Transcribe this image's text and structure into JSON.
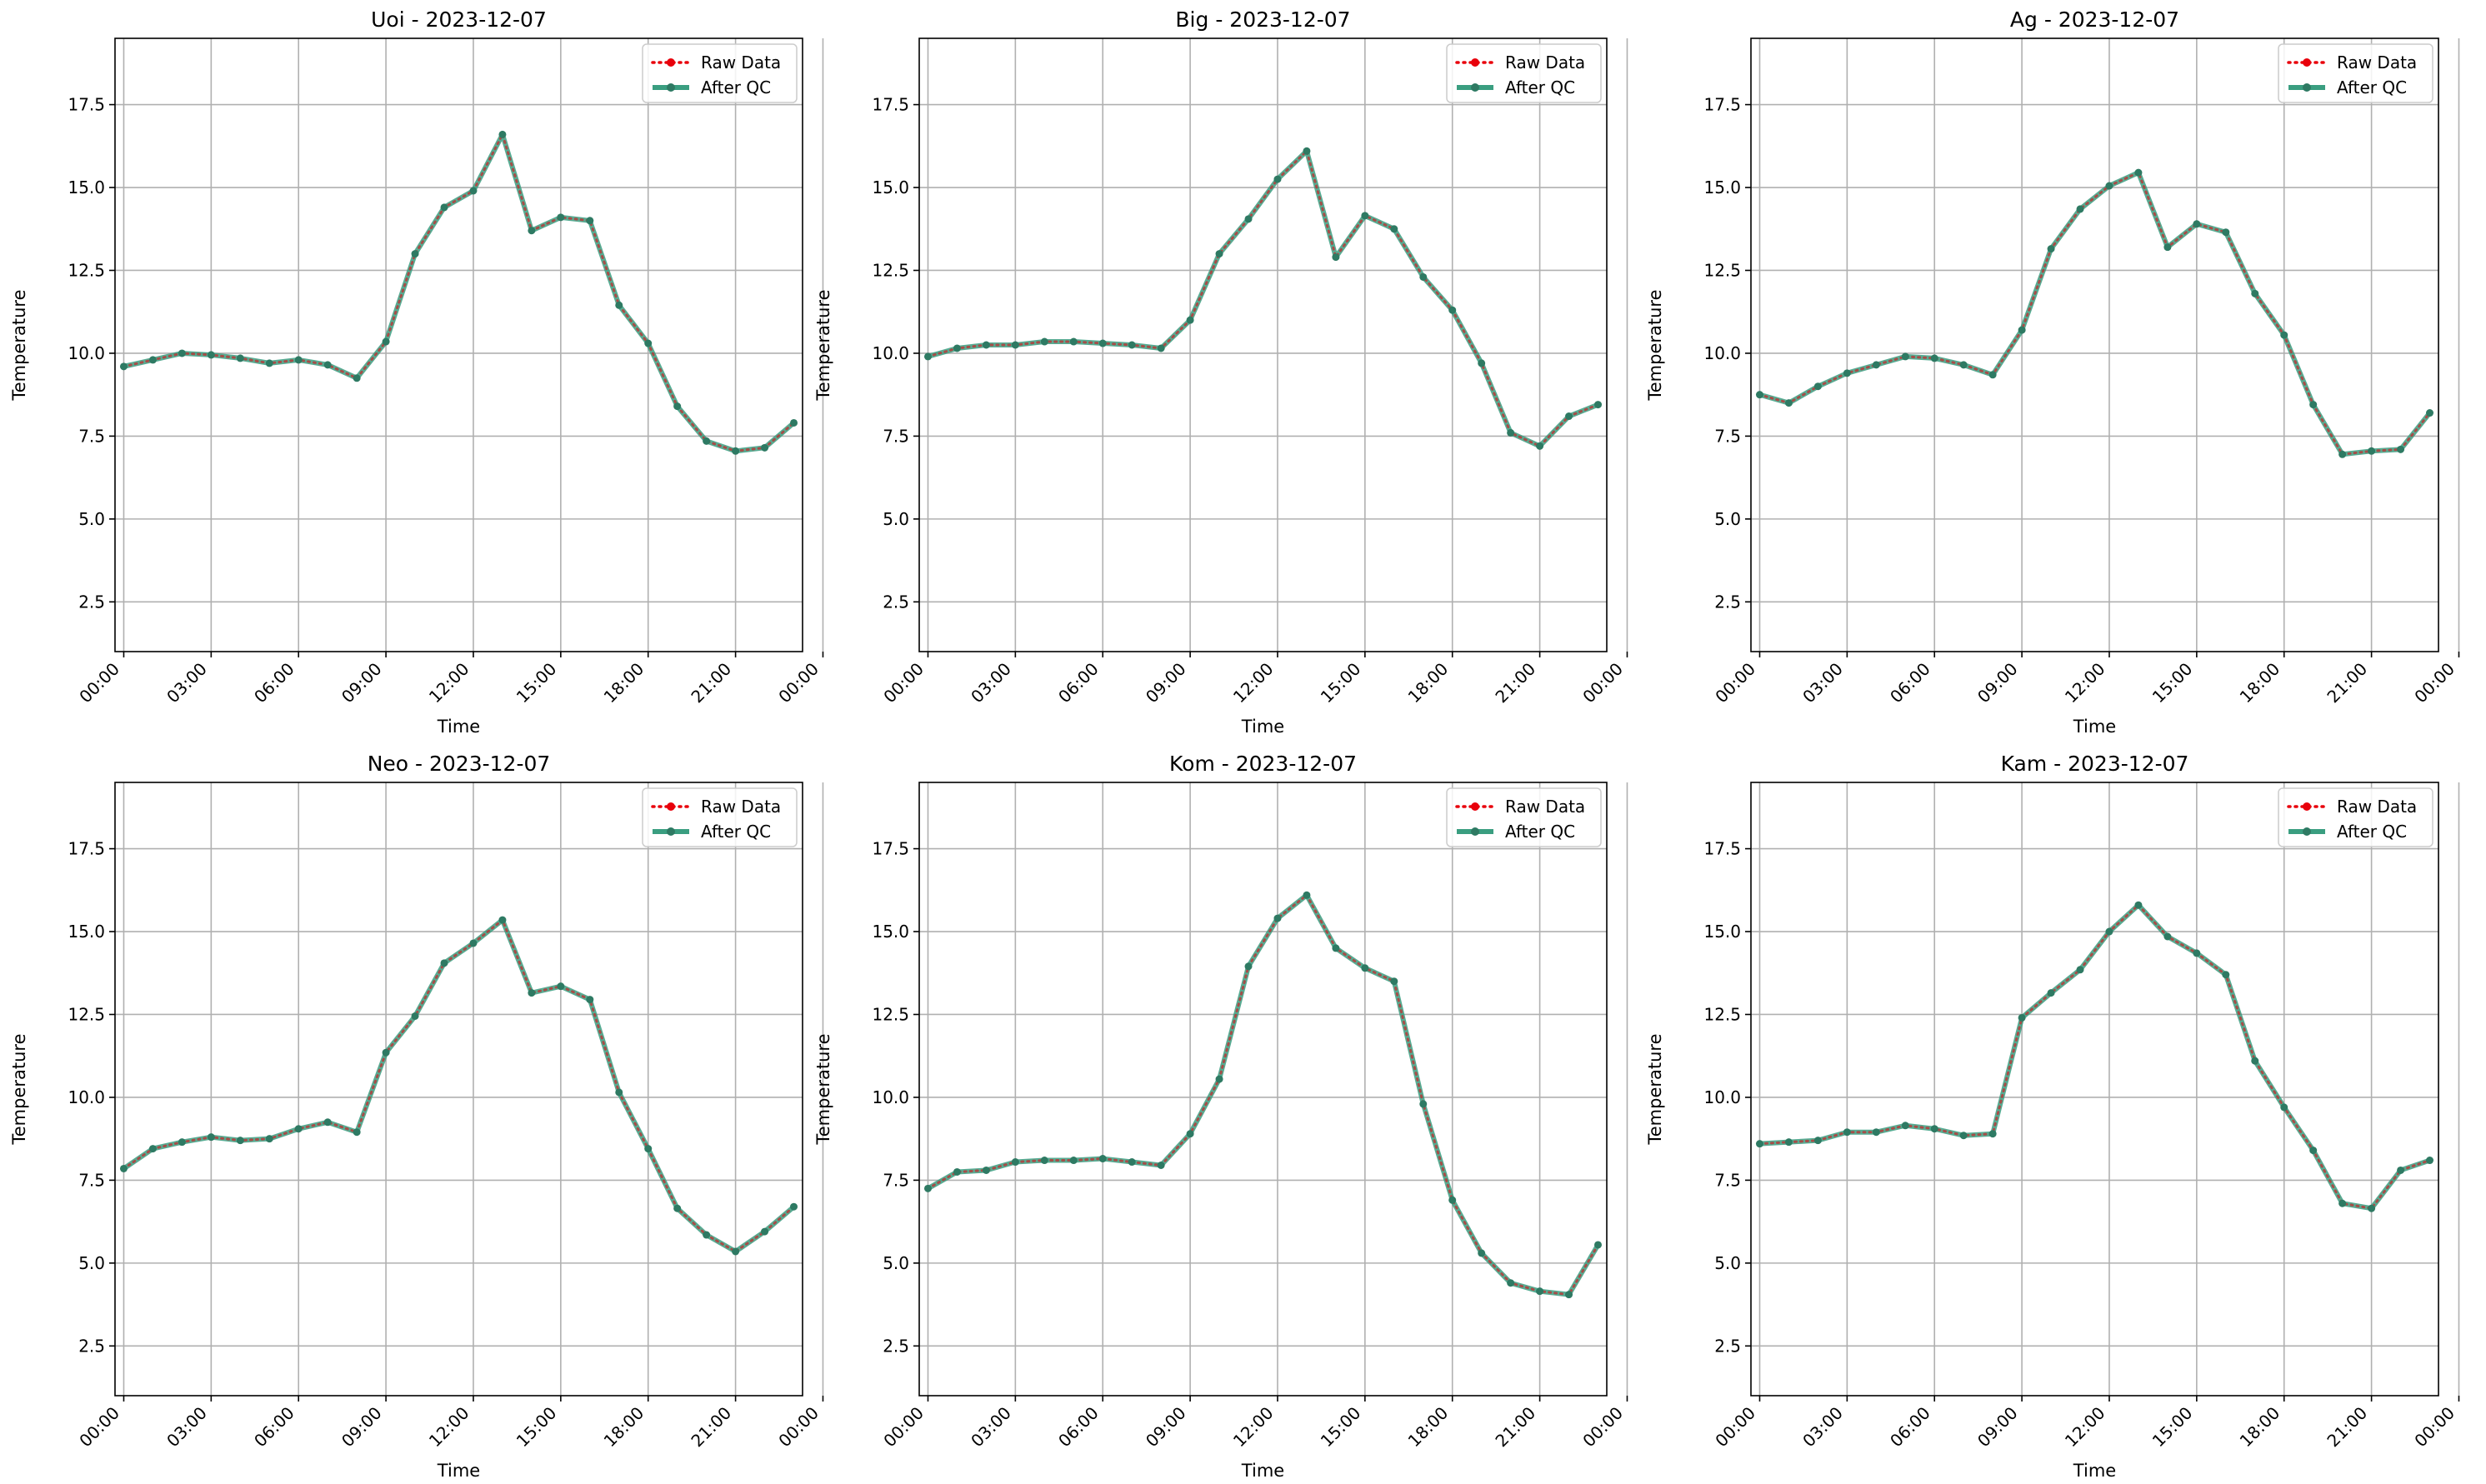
{
  "colors": {
    "raw": "#e8000b",
    "qc": "#3a9e80",
    "marker": "#2e7a63",
    "grid": "#b0b0b0",
    "axis": "#000000",
    "legend_border": "#cccccc"
  },
  "chart_data": [
    {
      "type": "line",
      "title": "Uoi - 2023-12-07",
      "xlabel": "Time",
      "ylabel": "Temperature",
      "ylim": [
        1.0,
        19.5
      ],
      "xlim": [
        -0.3,
        23.3
      ],
      "x_ticks": [
        "00:00",
        "03:00",
        "06:00",
        "09:00",
        "12:00",
        "15:00",
        "18:00",
        "21:00",
        "00:00"
      ],
      "y_ticks": [
        "2.5",
        "5.0",
        "7.5",
        "10.0",
        "12.5",
        "15.0",
        "17.5"
      ],
      "grid": true,
      "legend_position": "top-right",
      "x": [
        0,
        1,
        2,
        3,
        4,
        5,
        6,
        7,
        8,
        9,
        10,
        11,
        12,
        13,
        14,
        15,
        16,
        17,
        18,
        19,
        20,
        21,
        22,
        23
      ],
      "series": [
        {
          "name": "Raw Data",
          "style": "dotted",
          "values": [
            9.6,
            9.8,
            10.0,
            9.95,
            9.85,
            9.7,
            9.8,
            9.65,
            9.25,
            10.35,
            13.0,
            14.4,
            14.9,
            16.6,
            13.7,
            14.1,
            14.0,
            11.45,
            10.3,
            8.4,
            7.35,
            7.05,
            7.15,
            7.9
          ]
        },
        {
          "name": "After QC",
          "style": "solid",
          "values": [
            9.6,
            9.8,
            10.0,
            9.95,
            9.85,
            9.7,
            9.8,
            9.65,
            9.25,
            10.35,
            13.0,
            14.4,
            14.9,
            16.6,
            13.7,
            14.1,
            14.0,
            11.45,
            10.3,
            8.4,
            7.35,
            7.05,
            7.15,
            7.9
          ]
        }
      ]
    },
    {
      "type": "line",
      "title": "Big - 2023-12-07",
      "xlabel": "Time",
      "ylabel": "Temperature",
      "ylim": [
        1.0,
        19.5
      ],
      "xlim": [
        -0.3,
        23.3
      ],
      "x_ticks": [
        "00:00",
        "03:00",
        "06:00",
        "09:00",
        "12:00",
        "15:00",
        "18:00",
        "21:00",
        "00:00"
      ],
      "y_ticks": [
        "2.5",
        "5.0",
        "7.5",
        "10.0",
        "12.5",
        "15.0",
        "17.5"
      ],
      "grid": true,
      "legend_position": "top-right",
      "x": [
        0,
        1,
        2,
        3,
        4,
        5,
        6,
        7,
        8,
        9,
        10,
        11,
        12,
        13,
        14,
        15,
        16,
        17,
        18,
        19,
        20,
        21,
        22,
        23
      ],
      "series": [
        {
          "name": "Raw Data",
          "style": "dotted",
          "values": [
            9.9,
            10.15,
            10.25,
            10.25,
            10.35,
            10.35,
            10.3,
            10.25,
            10.15,
            11.0,
            13.0,
            14.05,
            15.25,
            16.1,
            12.9,
            14.15,
            13.75,
            12.3,
            11.3,
            9.7,
            7.6,
            7.2,
            8.1,
            8.45
          ]
        },
        {
          "name": "After QC",
          "style": "solid",
          "values": [
            9.9,
            10.15,
            10.25,
            10.25,
            10.35,
            10.35,
            10.3,
            10.25,
            10.15,
            11.0,
            13.0,
            14.05,
            15.25,
            16.1,
            12.9,
            14.15,
            13.75,
            12.3,
            11.3,
            9.7,
            7.6,
            7.2,
            8.1,
            8.45
          ]
        }
      ]
    },
    {
      "type": "line",
      "title": "Ag - 2023-12-07",
      "xlabel": "Time",
      "ylabel": "Temperature",
      "ylim": [
        1.0,
        19.5
      ],
      "xlim": [
        -0.3,
        23.3
      ],
      "x_ticks": [
        "00:00",
        "03:00",
        "06:00",
        "09:00",
        "12:00",
        "15:00",
        "18:00",
        "21:00",
        "00:00"
      ],
      "y_ticks": [
        "2.5",
        "5.0",
        "7.5",
        "10.0",
        "12.5",
        "15.0",
        "17.5"
      ],
      "grid": true,
      "legend_position": "top-right",
      "x": [
        0,
        1,
        2,
        3,
        4,
        5,
        6,
        7,
        8,
        9,
        10,
        11,
        12,
        13,
        14,
        15,
        16,
        17,
        18,
        19,
        20,
        21,
        22,
        23
      ],
      "series": [
        {
          "name": "Raw Data",
          "style": "dotted",
          "values": [
            8.75,
            8.5,
            9.0,
            9.4,
            9.65,
            9.9,
            9.85,
            9.65,
            9.35,
            10.7,
            13.15,
            14.35,
            15.05,
            15.45,
            13.2,
            13.9,
            13.65,
            11.8,
            10.55,
            8.45,
            6.95,
            7.05,
            7.1,
            8.2
          ]
        },
        {
          "name": "After QC",
          "style": "solid",
          "values": [
            8.75,
            8.5,
            9.0,
            9.4,
            9.65,
            9.9,
            9.85,
            9.65,
            9.35,
            10.7,
            13.15,
            14.35,
            15.05,
            15.45,
            13.2,
            13.9,
            13.65,
            11.8,
            10.55,
            8.45,
            6.95,
            7.05,
            7.1,
            8.2
          ]
        }
      ]
    },
    {
      "type": "line",
      "title": "Neo - 2023-12-07",
      "xlabel": "Time",
      "ylabel": "Temperature",
      "ylim": [
        1.0,
        19.5
      ],
      "xlim": [
        -0.3,
        23.3
      ],
      "x_ticks": [
        "00:00",
        "03:00",
        "06:00",
        "09:00",
        "12:00",
        "15:00",
        "18:00",
        "21:00",
        "00:00"
      ],
      "y_ticks": [
        "2.5",
        "5.0",
        "7.5",
        "10.0",
        "12.5",
        "15.0",
        "17.5"
      ],
      "grid": true,
      "legend_position": "top-right",
      "x": [
        0,
        1,
        2,
        3,
        4,
        5,
        6,
        7,
        8,
        9,
        10,
        11,
        12,
        13,
        14,
        15,
        16,
        17,
        18,
        19,
        20,
        21,
        22,
        23
      ],
      "series": [
        {
          "name": "Raw Data",
          "style": "dotted",
          "values": [
            7.85,
            8.45,
            8.65,
            8.8,
            8.7,
            8.75,
            9.05,
            9.25,
            8.95,
            11.35,
            12.45,
            14.05,
            14.65,
            15.35,
            13.15,
            13.35,
            12.95,
            10.15,
            8.45,
            6.65,
            5.85,
            5.35,
            5.95,
            6.7
          ]
        },
        {
          "name": "After QC",
          "style": "solid",
          "values": [
            7.85,
            8.45,
            8.65,
            8.8,
            8.7,
            8.75,
            9.05,
            9.25,
            8.95,
            11.35,
            12.45,
            14.05,
            14.65,
            15.35,
            13.15,
            13.35,
            12.95,
            10.15,
            8.45,
            6.65,
            5.85,
            5.35,
            5.95,
            6.7
          ]
        }
      ]
    },
    {
      "type": "line",
      "title": "Kom - 2023-12-07",
      "xlabel": "Time",
      "ylabel": "Temperature",
      "ylim": [
        1.0,
        19.5
      ],
      "xlim": [
        -0.3,
        23.3
      ],
      "x_ticks": [
        "00:00",
        "03:00",
        "06:00",
        "09:00",
        "12:00",
        "15:00",
        "18:00",
        "21:00",
        "00:00"
      ],
      "y_ticks": [
        "2.5",
        "5.0",
        "7.5",
        "10.0",
        "12.5",
        "15.0",
        "17.5"
      ],
      "grid": true,
      "legend_position": "top-right",
      "x": [
        0,
        1,
        2,
        3,
        4,
        5,
        6,
        7,
        8,
        9,
        10,
        11,
        12,
        13,
        14,
        15,
        16,
        17,
        18,
        19,
        20,
        21,
        22,
        23
      ],
      "series": [
        {
          "name": "Raw Data",
          "style": "dotted",
          "values": [
            7.25,
            7.75,
            7.8,
            8.05,
            8.1,
            8.1,
            8.15,
            8.05,
            7.95,
            8.9,
            10.55,
            13.95,
            15.4,
            16.1,
            14.5,
            13.9,
            13.5,
            9.8,
            6.9,
            5.3,
            4.4,
            4.15,
            4.05,
            5.55
          ]
        },
        {
          "name": "After QC",
          "style": "solid",
          "values": [
            7.25,
            7.75,
            7.8,
            8.05,
            8.1,
            8.1,
            8.15,
            8.05,
            7.95,
            8.9,
            10.55,
            13.95,
            15.4,
            16.1,
            14.5,
            13.9,
            13.5,
            9.8,
            6.9,
            5.3,
            4.4,
            4.15,
            4.05,
            5.55
          ]
        }
      ]
    },
    {
      "type": "line",
      "title": "Kam - 2023-12-07",
      "xlabel": "Time",
      "ylabel": "Temperature",
      "ylim": [
        1.0,
        19.5
      ],
      "xlim": [
        -0.3,
        23.3
      ],
      "x_ticks": [
        "00:00",
        "03:00",
        "06:00",
        "09:00",
        "12:00",
        "15:00",
        "18:00",
        "21:00",
        "00:00"
      ],
      "y_ticks": [
        "2.5",
        "5.0",
        "7.5",
        "10.0",
        "12.5",
        "15.0",
        "17.5"
      ],
      "grid": true,
      "legend_position": "top-right",
      "x": [
        0,
        1,
        2,
        3,
        4,
        5,
        6,
        7,
        8,
        9,
        10,
        11,
        12,
        13,
        14,
        15,
        16,
        17,
        18,
        19,
        20,
        21,
        22,
        23
      ],
      "series": [
        {
          "name": "Raw Data",
          "style": "dotted",
          "values": [
            8.6,
            8.65,
            8.7,
            8.95,
            8.95,
            9.15,
            9.05,
            8.85,
            8.9,
            12.4,
            13.15,
            13.85,
            15.0,
            15.8,
            14.85,
            14.35,
            13.7,
            11.1,
            9.7,
            8.4,
            6.8,
            6.65,
            7.8,
            8.1
          ]
        },
        {
          "name": "After QC",
          "style": "solid",
          "values": [
            8.6,
            8.65,
            8.7,
            8.95,
            8.95,
            9.15,
            9.05,
            8.85,
            8.9,
            12.4,
            13.15,
            13.85,
            15.0,
            15.8,
            14.85,
            14.35,
            13.7,
            11.1,
            9.7,
            8.4,
            6.8,
            6.65,
            7.8,
            8.1
          ]
        }
      ]
    }
  ]
}
